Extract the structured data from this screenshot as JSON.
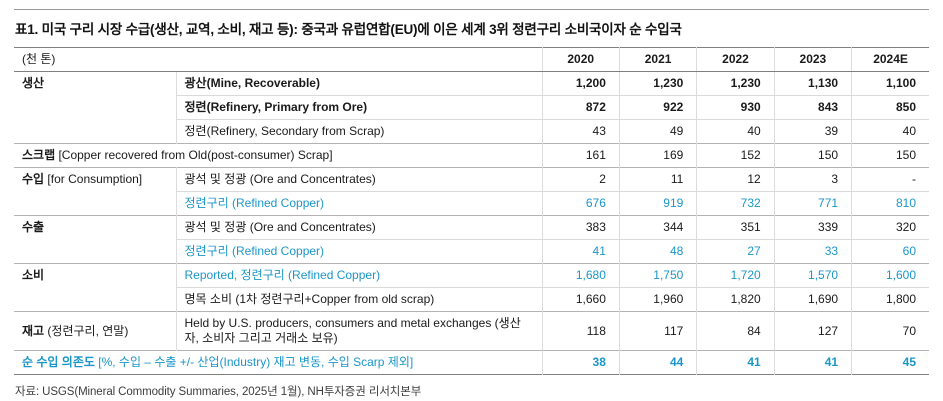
{
  "title": "표1. 미국 구리 시장 수급(생산, 교역, 소비, 재고 등): 중국과 유럽연합(EU)에 이은 세계 3위 정련구리 소비국이자 순 수입국",
  "colors": {
    "accent_blue": "#1b96c8"
  },
  "table": {
    "unit_label": "(천 톤)",
    "years": [
      "2020",
      "2021",
      "2022",
      "2023",
      "2024E"
    ],
    "rows": [
      {
        "cat": "생산",
        "cat_rowspan": 3,
        "group_start": true,
        "label": "광산(Mine, Recoverable)",
        "label_bold": true,
        "values": [
          "1,200",
          "1,230",
          "1,230",
          "1,130",
          "1,100"
        ],
        "values_bold": true
      },
      {
        "label": "정련(Refinery, Primary from Ore)",
        "label_bold": true,
        "values": [
          "872",
          "922",
          "930",
          "843",
          "850"
        ],
        "values_bold": true
      },
      {
        "label": "정련(Refinery, Secondary from Scrap)",
        "values": [
          "43",
          "49",
          "40",
          "39",
          "40"
        ]
      },
      {
        "span_all": true,
        "group_start": true,
        "cat": "스크랩",
        "cat_note": " [Copper recovered from Old(post-consumer) Scrap]",
        "values": [
          "161",
          "169",
          "152",
          "150",
          "150"
        ]
      },
      {
        "cat": "수입",
        "cat_note": " [for Consumption]",
        "cat_rowspan": 2,
        "group_start": true,
        "label": "광석 및 정광 (Ore and Concentrates)",
        "values": [
          "2",
          "11",
          "12",
          "3",
          "-"
        ]
      },
      {
        "label": "정련구리 (Refined Copper)",
        "blue": true,
        "values": [
          "676",
          "919",
          "732",
          "771",
          "810"
        ]
      },
      {
        "cat": "수출",
        "cat_rowspan": 2,
        "group_start": true,
        "label": "광석 및 정광 (Ore and Concentrates)",
        "values": [
          "383",
          "344",
          "351",
          "339",
          "320"
        ]
      },
      {
        "label": "정련구리 (Refined Copper)",
        "blue": true,
        "values": [
          "41",
          "48",
          "27",
          "33",
          "60"
        ]
      },
      {
        "cat": "소비",
        "cat_rowspan": 2,
        "group_start": true,
        "label": "Reported, 정련구리 (Refined Copper)",
        "blue": true,
        "values": [
          "1,680",
          "1,750",
          "1,720",
          "1,570",
          "1,600"
        ]
      },
      {
        "label": "명목 소비 (1차 정련구리+Copper from old scrap)",
        "values": [
          "1,660",
          "1,960",
          "1,820",
          "1,690",
          "1,800"
        ]
      },
      {
        "cat": "재고",
        "cat_note": " (정련구리, 연말)",
        "group_start": true,
        "label": "Held by U.S. producers, consumers and metal exchanges (생산자, 소비자 그리고 거래소 보유)",
        "values": [
          "118",
          "117",
          "84",
          "127",
          "70"
        ]
      },
      {
        "span_all": true,
        "group_start": true,
        "blue": true,
        "cat": "순 수입 의존도",
        "cat_note": " [%, 수입 – 수출 +/- 산업(Industry) 재고 변동, 수입 Scarp 제외]",
        "values": [
          "38",
          "44",
          "41",
          "41",
          "45"
        ],
        "values_bold": true
      }
    ]
  },
  "footer": "자료: USGS(Mineral Commodity Summaries, 2025년 1월), NH투자증권 리서치본부"
}
